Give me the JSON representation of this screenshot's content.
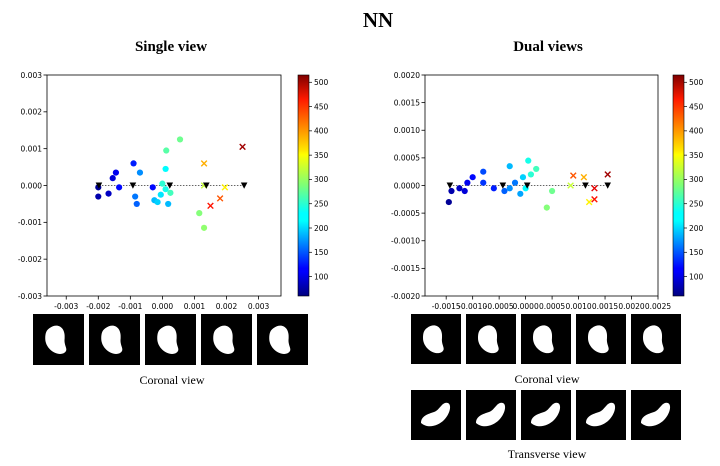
{
  "title": "NN",
  "colorbar": {
    "ticks": [
      100,
      150,
      200,
      250,
      300,
      350,
      400,
      450,
      500
    ],
    "range": [
      60,
      515
    ],
    "colormap": "jet"
  },
  "chart_data": [
    {
      "type": "scatter",
      "title": "Single view",
      "xlabel": "",
      "ylabel": "",
      "xlim": [
        -0.0036,
        0.0037
      ],
      "ylim": [
        -0.003,
        0.003
      ],
      "xticks": [
        -0.003,
        -0.002,
        -0.001,
        0.0,
        0.001,
        0.002,
        0.003
      ],
      "xtick_labels": [
        "-0.003",
        "-0.002",
        "-0.001",
        "0.000",
        "0.001",
        "0.002",
        "0.003"
      ],
      "yticks": [
        -0.003,
        -0.002,
        -0.001,
        0.0,
        0.001,
        0.002,
        0.003
      ],
      "ytick_labels": [
        "-0.003",
        "-0.002",
        "-0.001",
        "0.000",
        "0.001",
        "0.002",
        "0.003"
      ],
      "grid": false,
      "colorbar": true,
      "reference_points": [
        {
          "x": -0.00198,
          "y": 0.0
        },
        {
          "x": -0.00092,
          "y": 0.0
        },
        {
          "x": 0.00023,
          "y": 0.0
        },
        {
          "x": 0.00137,
          "y": 0.0
        },
        {
          "x": 0.00255,
          "y": 0.0
        }
      ],
      "points": [
        {
          "x": -0.002,
          "y": -0.0003,
          "v": 80,
          "marker": "o"
        },
        {
          "x": -0.002,
          "y": -5e-05,
          "v": 70,
          "marker": "o"
        },
        {
          "x": -0.00168,
          "y": -0.00022,
          "v": 90,
          "marker": "o"
        },
        {
          "x": -0.00155,
          "y": 0.0002,
          "v": 100,
          "marker": "o"
        },
        {
          "x": -0.00145,
          "y": 0.00035,
          "v": 110,
          "marker": "o"
        },
        {
          "x": -0.00135,
          "y": -5e-05,
          "v": 120,
          "marker": "o"
        },
        {
          "x": -0.0009,
          "y": 0.0006,
          "v": 130,
          "marker": "o"
        },
        {
          "x": -0.00085,
          "y": -0.0003,
          "v": 170,
          "marker": "o"
        },
        {
          "x": -0.0008,
          "y": -0.0005,
          "v": 160,
          "marker": "o"
        },
        {
          "x": -0.0007,
          "y": 0.00035,
          "v": 180,
          "marker": "o"
        },
        {
          "x": -0.0003,
          "y": -5e-05,
          "v": 120,
          "marker": "o"
        },
        {
          "x": -0.00025,
          "y": -0.0004,
          "v": 200,
          "marker": "o"
        },
        {
          "x": -0.00015,
          "y": -0.00045,
          "v": 210,
          "marker": "o"
        },
        {
          "x": -5e-05,
          "y": -0.00025,
          "v": 220,
          "marker": "o"
        },
        {
          "x": 0.0,
          "y": 5e-05,
          "v": 250,
          "marker": "o"
        },
        {
          "x": 0.0001,
          "y": -0.0001,
          "v": 240,
          "marker": "o"
        },
        {
          "x": 0.0001,
          "y": 0.00045,
          "v": 230,
          "marker": "o"
        },
        {
          "x": 0.00012,
          "y": 0.00095,
          "v": 270,
          "marker": "o"
        },
        {
          "x": 0.00018,
          "y": -0.0005,
          "v": 200,
          "marker": "o"
        },
        {
          "x": 0.00025,
          "y": -0.0002,
          "v": 260,
          "marker": "o"
        },
        {
          "x": 0.00055,
          "y": 0.00125,
          "v": 280,
          "marker": "o"
        },
        {
          "x": 0.00115,
          "y": -0.00075,
          "v": 290,
          "marker": "o"
        },
        {
          "x": 0.0013,
          "y": -0.00115,
          "v": 295,
          "marker": "o"
        },
        {
          "x": 0.0013,
          "y": 0.0,
          "v": 320,
          "marker": "x"
        },
        {
          "x": 0.0013,
          "y": 0.0006,
          "v": 380,
          "marker": "x"
        },
        {
          "x": 0.0015,
          "y": -0.00055,
          "v": 450,
          "marker": "x"
        },
        {
          "x": 0.0018,
          "y": -0.00035,
          "v": 420,
          "marker": "x"
        },
        {
          "x": 0.00195,
          "y": -5e-05,
          "v": 350,
          "marker": "x"
        },
        {
          "x": 0.0025,
          "y": 0.00105,
          "v": 500,
          "marker": "x"
        }
      ]
    },
    {
      "type": "scatter",
      "title": "Dual views",
      "xlabel": "",
      "ylabel": "",
      "xlim": [
        -0.0019,
        0.0025
      ],
      "ylim": [
        -0.002,
        0.002
      ],
      "xticks": [
        -0.002,
        -0.0015,
        -0.001,
        -0.0005,
        0.0,
        0.0005,
        0.001,
        0.0015,
        0.002,
        0.0025
      ],
      "xtick_labels": [
        "-0.0020",
        "-0.0015",
        "-0.0010",
        "-0.0005",
        "0.0000",
        "0.0005",
        "0.0010",
        "0.0015",
        "0.0020",
        "0.0025"
      ],
      "yticks": [
        -0.002,
        -0.0015,
        -0.001,
        -0.0005,
        0.0,
        0.0005,
        0.001,
        0.0015,
        0.002
      ],
      "ytick_labels": [
        "-0.0020",
        "-0.0015",
        "-0.0010",
        "-0.0005",
        "0.0000",
        "0.0005",
        "0.0010",
        "0.0015",
        "0.0020"
      ],
      "grid": false,
      "colorbar": true,
      "reference_points": [
        {
          "x": -0.00143,
          "y": 0.0
        },
        {
          "x": -0.00043,
          "y": 0.0
        },
        {
          "x": 3e-05,
          "y": 0.0
        },
        {
          "x": 0.00113,
          "y": 0.0
        },
        {
          "x": 0.00155,
          "y": 0.0
        }
      ],
      "points": [
        {
          "x": -0.00145,
          "y": -0.0003,
          "v": 70,
          "marker": "o"
        },
        {
          "x": -0.0014,
          "y": -0.0001,
          "v": 80,
          "marker": "o"
        },
        {
          "x": -0.00125,
          "y": -5e-05,
          "v": 90,
          "marker": "o"
        },
        {
          "x": -0.00115,
          "y": -0.0001,
          "v": 100,
          "marker": "o"
        },
        {
          "x": -0.0011,
          "y": 5e-05,
          "v": 110,
          "marker": "o"
        },
        {
          "x": -0.001,
          "y": 0.00015,
          "v": 120,
          "marker": "o"
        },
        {
          "x": -0.0008,
          "y": 5e-05,
          "v": 140,
          "marker": "o"
        },
        {
          "x": -0.0008,
          "y": 0.00025,
          "v": 150,
          "marker": "o"
        },
        {
          "x": -0.0006,
          "y": -5e-05,
          "v": 130,
          "marker": "o"
        },
        {
          "x": -0.0004,
          "y": -0.0001,
          "v": 160,
          "marker": "o"
        },
        {
          "x": -0.0003,
          "y": -5e-05,
          "v": 180,
          "marker": "o"
        },
        {
          "x": -0.0003,
          "y": 0.00035,
          "v": 200,
          "marker": "o"
        },
        {
          "x": -0.0002,
          "y": 5e-05,
          "v": 170,
          "marker": "o"
        },
        {
          "x": -0.0001,
          "y": -0.00015,
          "v": 190,
          "marker": "o"
        },
        {
          "x": -5e-05,
          "y": 0.00015,
          "v": 210,
          "marker": "o"
        },
        {
          "x": 0.0,
          "y": -5e-05,
          "v": 230,
          "marker": "o"
        },
        {
          "x": 5e-05,
          "y": 0.00045,
          "v": 240,
          "marker": "o"
        },
        {
          "x": 0.0001,
          "y": 0.0002,
          "v": 250,
          "marker": "o"
        },
        {
          "x": 0.0002,
          "y": 0.0003,
          "v": 260,
          "marker": "o"
        },
        {
          "x": 0.0004,
          "y": -0.0004,
          "v": 290,
          "marker": "o"
        },
        {
          "x": 0.0005,
          "y": -0.0001,
          "v": 280,
          "marker": "o"
        },
        {
          "x": 0.00085,
          "y": 0.0,
          "v": 320,
          "marker": "x"
        },
        {
          "x": 0.0009,
          "y": 0.00018,
          "v": 420,
          "marker": "x"
        },
        {
          "x": 0.0011,
          "y": 0.00015,
          "v": 380,
          "marker": "x"
        },
        {
          "x": 0.0012,
          "y": -0.0003,
          "v": 350,
          "marker": "x"
        },
        {
          "x": 0.0013,
          "y": -0.00025,
          "v": 450,
          "marker": "x"
        },
        {
          "x": 0.0013,
          "y": -5e-05,
          "v": 470,
          "marker": "x"
        },
        {
          "x": 0.00155,
          "y": 0.0002,
          "v": 500,
          "marker": "x"
        }
      ]
    }
  ],
  "thumbnails": {
    "single": {
      "label": "Coronal view",
      "count": 5
    },
    "dual": [
      {
        "label": "Coronal view",
        "count": 5
      },
      {
        "label": "Transverse view",
        "count": 5
      }
    ]
  }
}
